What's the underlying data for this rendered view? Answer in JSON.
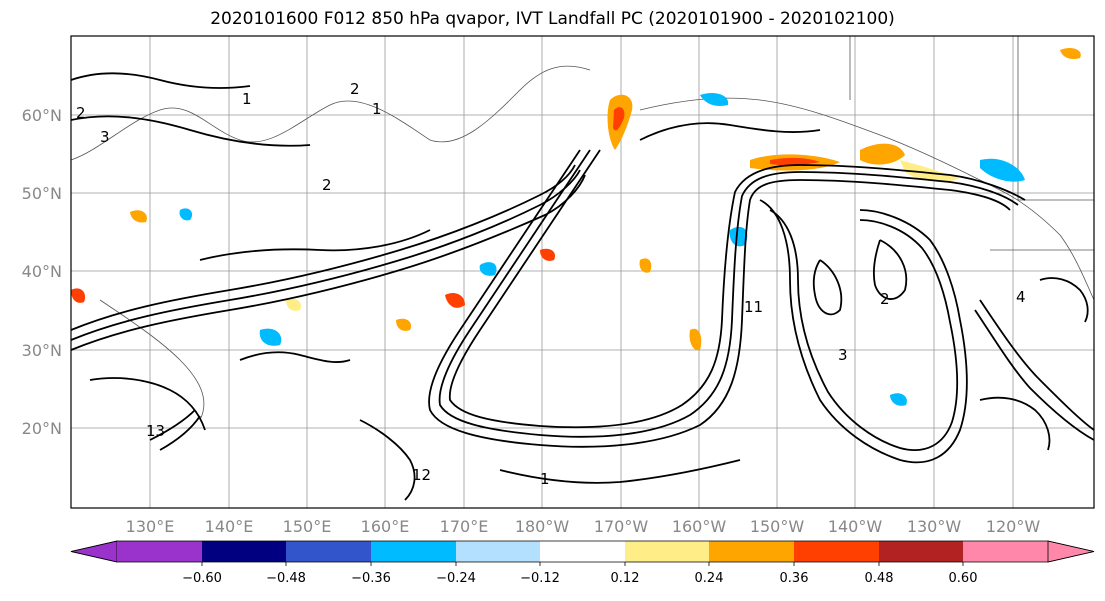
{
  "title": "2020101600 F012 850 hPa qvapor, IVT Landfall PC (2020101900 - 2020102100)",
  "lat_labels": [
    "60°N",
    "50°N",
    "40°N",
    "30°N",
    "20°N"
  ],
  "lon_labels": [
    "130°E",
    "140°E",
    "150°E",
    "160°E",
    "170°E",
    "180°W",
    "170°W",
    "160°W",
    "150°W",
    "140°W",
    "130°W",
    "120°W"
  ],
  "colorbar": {
    "tick_labels": [
      "−0.60",
      "−0.48",
      "−0.36",
      "−0.24",
      "−0.12",
      "0.12",
      "0.24",
      "0.36",
      "0.48",
      "0.60"
    ],
    "colors": [
      "#9933cc",
      "#000080",
      "#3355cc",
      "#00bbff",
      "#b3e0ff",
      "#ffffff",
      "#ffee88",
      "#ffa500",
      "#ff4000",
      "#b22222",
      "#ff88aa"
    ]
  },
  "contour_labels": [
    "2",
    "3",
    "2",
    "1",
    "2",
    "1",
    "11",
    "3",
    "4",
    "12",
    "13",
    "1",
    "2"
  ]
}
